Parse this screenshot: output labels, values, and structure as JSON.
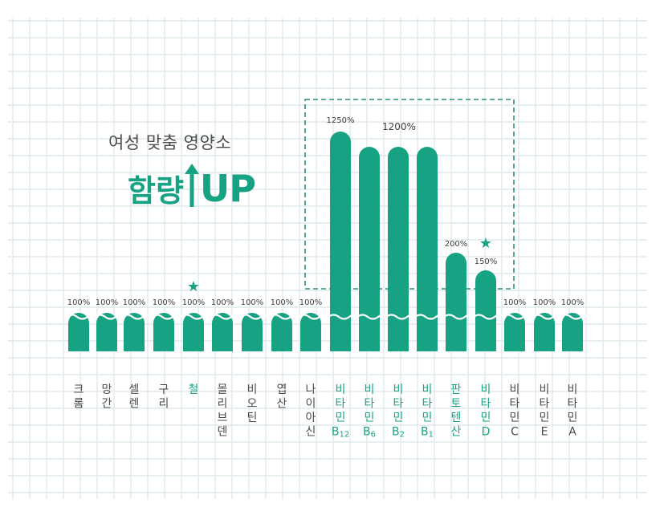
{
  "colors": {
    "bar": "#17a383",
    "accent_text": "#17a383",
    "label_text": "#4a4a4a",
    "value_text": "#3d3d3d",
    "grid": "#dfe9ee",
    "highlight_box": "#2e8e78"
  },
  "headline": {
    "subtitle": "여성 맞춤 영양소",
    "main_word": "함량",
    "up_word": "UP",
    "icon": "up-arrow-icon"
  },
  "chart_data": {
    "type": "bar",
    "title": "",
    "xlabel": "",
    "ylabel": "",
    "axis_break": true,
    "highlight_box_categories": [
      "비타민B12",
      "비타민B6",
      "비타민B2",
      "비타민B1",
      "판토텐산",
      "비타민D"
    ],
    "categories": [
      "크롬",
      "망간",
      "셀렌",
      "구리",
      "철",
      "몰리브덴",
      "비오틴",
      "엽산",
      "나이아신",
      "비타민B12",
      "비타민B6",
      "비타민B2",
      "비타민B1",
      "판토텐산",
      "비타민D",
      "비타민C",
      "비타민E",
      "비타민A"
    ],
    "label_lines": [
      [
        "크",
        "롬"
      ],
      [
        "망",
        "간"
      ],
      [
        "셀",
        "렌"
      ],
      [
        "구",
        "리"
      ],
      [
        "철"
      ],
      [
        "몰",
        "리",
        "브",
        "덴"
      ],
      [
        "비",
        "오",
        "틴"
      ],
      [
        "엽",
        "산"
      ],
      [
        "나",
        "이",
        "아",
        "신"
      ],
      [
        "비",
        "타",
        "민",
        "B12"
      ],
      [
        "비",
        "타",
        "민",
        "B6"
      ],
      [
        "비",
        "타",
        "민",
        "B2"
      ],
      [
        "비",
        "타",
        "민",
        "B1"
      ],
      [
        "판",
        "토",
        "텐",
        "산"
      ],
      [
        "비",
        "타",
        "민",
        "D"
      ],
      [
        "비",
        "타",
        "민",
        "C"
      ],
      [
        "비",
        "타",
        "민",
        "E"
      ],
      [
        "비",
        "타",
        "민",
        "A"
      ]
    ],
    "values": [
      100,
      100,
      100,
      100,
      100,
      100,
      100,
      100,
      100,
      1250,
      1200,
      1200,
      1200,
      200,
      150,
      100,
      100,
      100
    ],
    "value_labels": [
      "100%",
      "100%",
      "100%",
      "100%",
      "100%",
      "100%",
      "100%",
      "100%",
      "100%",
      "1250%",
      "",
      "1200%",
      "",
      "200%",
      "150%",
      "100%",
      "100%",
      "100%"
    ],
    "highlighted": [
      false,
      false,
      false,
      false,
      true,
      false,
      false,
      false,
      false,
      true,
      true,
      true,
      true,
      true,
      true,
      false,
      false,
      false
    ],
    "starred": [
      false,
      false,
      false,
      false,
      true,
      false,
      false,
      false,
      false,
      false,
      false,
      false,
      false,
      false,
      true,
      false,
      false,
      false
    ],
    "star_symbol": "★"
  }
}
